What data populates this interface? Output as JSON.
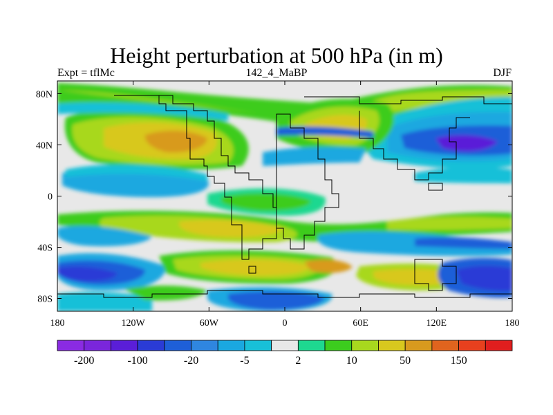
{
  "title": "Height perturbation at 500 hPa (in m)",
  "subtitle_left": "Expt = tflMc",
  "subtitle_center": "142_4_MaBP",
  "subtitle_right": "DJF",
  "axes": {
    "x_ticks": [
      "180",
      "120W",
      "60W",
      "0",
      "60E",
      "120E",
      "180"
    ],
    "y_ticks": [
      "80N",
      "40N",
      "0",
      "40S",
      "80S"
    ]
  },
  "colorbar": {
    "colors": [
      "#8a2be2",
      "#7a26db",
      "#5a1ed8",
      "#2a3bd6",
      "#1e5fd8",
      "#2f86e0",
      "#1aa8e0",
      "#18c0d8",
      "#e8e8e8",
      "#1ed890",
      "#3ccc1e",
      "#a8d81e",
      "#d8c81e",
      "#d89a1e",
      "#e0641e",
      "#e8401e",
      "#e01e1e"
    ],
    "labels": [
      "-200",
      "-100",
      "-20",
      "-5",
      "2",
      "10",
      "50",
      "150"
    ]
  }
}
